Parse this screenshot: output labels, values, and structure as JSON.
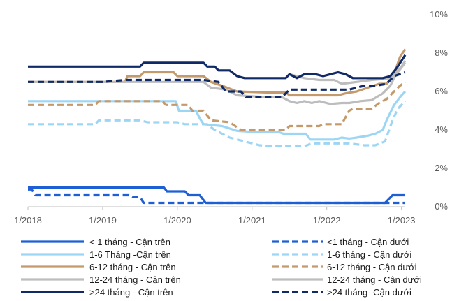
{
  "chart_data": {
    "type": "line",
    "y_axis": {
      "position": "right",
      "min": 0,
      "max": 10,
      "ticks": [
        "0%",
        "2%",
        "4%",
        "6%",
        "8%",
        "10%"
      ],
      "tick_values": [
        0,
        2,
        4,
        6,
        8,
        10
      ]
    },
    "x_axis": {
      "ticks": [
        "1/2018",
        "1/2019",
        "1/2020",
        "1/2021",
        "1/2022",
        "1/2023"
      ],
      "tick_values": [
        0,
        1,
        2,
        3,
        4,
        5
      ]
    },
    "grid": false,
    "legend_position": "bottom",
    "series": [
      {
        "name": "< 1 tháng - Cận trên",
        "color": "#1f5fd6",
        "dash": "solid",
        "points": [
          [
            0,
            1.0
          ],
          [
            1.0,
            1.0
          ],
          [
            1.5,
            1.0
          ],
          [
            1.82,
            1.0
          ],
          [
            1.86,
            0.8
          ],
          [
            2.1,
            0.8
          ],
          [
            2.15,
            0.6
          ],
          [
            2.3,
            0.6
          ],
          [
            2.38,
            0.2
          ],
          [
            4.78,
            0.2
          ],
          [
            4.88,
            0.6
          ],
          [
            5.05,
            0.6
          ]
        ]
      },
      {
        "name": "<1 tháng - Cận dưới",
        "color": "#1f5fd6",
        "dash": "dashed",
        "points": [
          [
            0,
            0.9
          ],
          [
            0.05,
            0.9
          ],
          [
            0.1,
            0.6
          ],
          [
            0.5,
            0.6
          ],
          [
            1.35,
            0.6
          ],
          [
            1.4,
            0.5
          ],
          [
            1.5,
            0.5
          ],
          [
            1.55,
            0.2
          ],
          [
            4.85,
            0.2
          ],
          [
            4.9,
            0.2
          ],
          [
            5.05,
            0.2
          ]
        ]
      },
      {
        "name": "1-6 Tháng -Cận trên",
        "color": "#9dd6f5",
        "dash": "solid",
        "points": [
          [
            0,
            5.5
          ],
          [
            1.0,
            5.5
          ],
          [
            1.6,
            5.5
          ],
          [
            1.98,
            5.5
          ],
          [
            2.02,
            5.0
          ],
          [
            2.25,
            5.0
          ],
          [
            2.3,
            4.6
          ],
          [
            2.35,
            4.3
          ],
          [
            2.6,
            4.2
          ],
          [
            2.8,
            3.95
          ],
          [
            3.0,
            3.9
          ],
          [
            3.35,
            3.9
          ],
          [
            3.42,
            3.8
          ],
          [
            3.72,
            3.8
          ],
          [
            3.78,
            3.5
          ],
          [
            4.1,
            3.5
          ],
          [
            4.2,
            3.6
          ],
          [
            4.3,
            3.55
          ],
          [
            4.4,
            3.6
          ],
          [
            4.55,
            3.7
          ],
          [
            4.65,
            3.8
          ],
          [
            4.75,
            4.0
          ],
          [
            4.8,
            4.5
          ],
          [
            4.9,
            5.3
          ],
          [
            5.0,
            5.8
          ],
          [
            5.05,
            6.0
          ]
        ]
      },
      {
        "name": "1-6 tháng - Cận dưới",
        "color": "#9dd6f5",
        "dash": "dashed",
        "points": [
          [
            0,
            4.3
          ],
          [
            0.5,
            4.3
          ],
          [
            0.9,
            4.3
          ],
          [
            0.95,
            4.5
          ],
          [
            1.5,
            4.5
          ],
          [
            1.6,
            4.4
          ],
          [
            2.0,
            4.4
          ],
          [
            2.1,
            4.3
          ],
          [
            2.4,
            4.3
          ],
          [
            2.5,
            4.0
          ],
          [
            2.7,
            3.6
          ],
          [
            2.9,
            3.4
          ],
          [
            3.1,
            3.2
          ],
          [
            3.3,
            3.15
          ],
          [
            3.7,
            3.15
          ],
          [
            3.8,
            3.3
          ],
          [
            4.3,
            3.3
          ],
          [
            4.5,
            3.2
          ],
          [
            4.65,
            3.2
          ],
          [
            4.78,
            3.4
          ],
          [
            4.88,
            4.5
          ],
          [
            4.95,
            5.1
          ],
          [
            5.05,
            5.5
          ]
        ]
      },
      {
        "name": "6-12 tháng - Cận trên",
        "color": "#c49a6c",
        "dash": "solid",
        "points": [
          [
            0,
            6.5
          ],
          [
            1.0,
            6.5
          ],
          [
            1.3,
            6.5
          ],
          [
            1.33,
            6.8
          ],
          [
            1.5,
            6.8
          ],
          [
            1.55,
            7.0
          ],
          [
            1.95,
            7.0
          ],
          [
            2.0,
            6.8
          ],
          [
            2.35,
            6.8
          ],
          [
            2.45,
            6.5
          ],
          [
            2.6,
            6.3
          ],
          [
            2.8,
            6.0
          ],
          [
            3.2,
            5.95
          ],
          [
            3.45,
            5.95
          ],
          [
            3.5,
            5.8
          ],
          [
            3.9,
            5.8
          ],
          [
            4.0,
            5.8
          ],
          [
            4.15,
            5.8
          ],
          [
            4.25,
            5.9
          ],
          [
            4.4,
            6.0
          ],
          [
            4.55,
            6.2
          ],
          [
            4.7,
            6.4
          ],
          [
            4.8,
            6.4
          ],
          [
            4.9,
            6.9
          ],
          [
            4.98,
            7.8
          ],
          [
            5.05,
            8.2
          ]
        ]
      },
      {
        "name": "6-12 tháng - Cận dưới",
        "color": "#c49a6c",
        "dash": "dashed",
        "points": [
          [
            0,
            5.3
          ],
          [
            0.5,
            5.3
          ],
          [
            0.9,
            5.3
          ],
          [
            0.95,
            5.5
          ],
          [
            1.8,
            5.5
          ],
          [
            1.85,
            5.3
          ],
          [
            2.15,
            5.3
          ],
          [
            2.2,
            5.0
          ],
          [
            2.35,
            5.0
          ],
          [
            2.45,
            4.5
          ],
          [
            2.7,
            4.4
          ],
          [
            2.85,
            4.0
          ],
          [
            3.0,
            4.0
          ],
          [
            3.45,
            4.0
          ],
          [
            3.5,
            4.2
          ],
          [
            3.9,
            4.2
          ],
          [
            3.95,
            4.3
          ],
          [
            4.2,
            4.3
          ],
          [
            4.3,
            5.0
          ],
          [
            4.35,
            5.1
          ],
          [
            4.6,
            5.1
          ],
          [
            4.7,
            5.4
          ],
          [
            4.8,
            5.6
          ],
          [
            4.9,
            6.0
          ],
          [
            4.98,
            6.3
          ],
          [
            5.05,
            6.5
          ]
        ]
      },
      {
        "name": "12-24 tháng - Cận trên",
        "color": "#bdbdbd",
        "dash": "solid",
        "points": [
          [
            0,
            6.5
          ],
          [
            1.0,
            6.5
          ],
          [
            1.6,
            6.5
          ],
          [
            2.0,
            6.5
          ],
          [
            2.35,
            6.5
          ],
          [
            2.45,
            6.2
          ],
          [
            2.65,
            6.1
          ],
          [
            2.8,
            5.8
          ],
          [
            3.2,
            5.7
          ],
          [
            3.4,
            5.7
          ],
          [
            3.5,
            5.5
          ],
          [
            3.6,
            5.4
          ],
          [
            3.7,
            5.5
          ],
          [
            3.8,
            5.4
          ],
          [
            3.9,
            5.5
          ],
          [
            4.05,
            5.35
          ],
          [
            4.2,
            5.4
          ],
          [
            4.3,
            5.4
          ],
          [
            4.45,
            5.5
          ],
          [
            4.6,
            5.55
          ],
          [
            4.75,
            5.9
          ],
          [
            4.85,
            6.3
          ],
          [
            4.95,
            7.1
          ],
          [
            5.0,
            7.3
          ],
          [
            5.05,
            7.6
          ]
        ]
      },
      {
        "name": "12-24 tháng - Cận dưới",
        "color": "#bdbdbd",
        "dash": "solid",
        "points": [
          [
            3.5,
            6.9
          ],
          [
            3.7,
            6.7
          ],
          [
            3.9,
            6.6
          ],
          [
            4.1,
            6.6
          ],
          [
            4.2,
            6.4
          ],
          [
            4.4,
            6.5
          ],
          [
            4.6,
            6.6
          ],
          [
            4.75,
            6.65
          ],
          [
            4.85,
            6.7
          ],
          [
            4.95,
            7.0
          ],
          [
            5.05,
            7.5
          ]
        ]
      },
      {
        "name": ">24 tháng - Cận trên",
        "color": "#0f2a66",
        "dash": "solid",
        "points": [
          [
            0,
            7.3
          ],
          [
            1.0,
            7.3
          ],
          [
            1.5,
            7.3
          ],
          [
            1.55,
            7.5
          ],
          [
            2.0,
            7.5
          ],
          [
            2.35,
            7.5
          ],
          [
            2.4,
            7.3
          ],
          [
            2.5,
            7.3
          ],
          [
            2.55,
            7.1
          ],
          [
            2.7,
            7.1
          ],
          [
            2.8,
            6.8
          ],
          [
            2.9,
            6.7
          ],
          [
            3.2,
            6.7
          ],
          [
            3.45,
            6.7
          ],
          [
            3.5,
            6.9
          ],
          [
            3.6,
            6.7
          ],
          [
            3.7,
            6.9
          ],
          [
            3.85,
            6.9
          ],
          [
            3.95,
            6.8
          ],
          [
            4.05,
            6.9
          ],
          [
            4.15,
            7.0
          ],
          [
            4.25,
            6.9
          ],
          [
            4.35,
            6.7
          ],
          [
            4.55,
            6.7
          ],
          [
            4.75,
            6.7
          ],
          [
            4.85,
            6.8
          ],
          [
            4.95,
            7.3
          ],
          [
            5.05,
            7.9
          ]
        ]
      },
      {
        "name": ">24 tháng- Cận dưới",
        "color": "#0f2a66",
        "dash": "dashed",
        "points": [
          [
            0,
            6.5
          ],
          [
            1.0,
            6.5
          ],
          [
            1.3,
            6.6
          ],
          [
            2.0,
            6.6
          ],
          [
            2.35,
            6.6
          ],
          [
            2.55,
            6.5
          ],
          [
            2.65,
            6.0
          ],
          [
            2.85,
            6.0
          ],
          [
            2.92,
            5.7
          ],
          [
            3.4,
            5.7
          ],
          [
            3.5,
            6.1
          ],
          [
            3.85,
            6.1
          ],
          [
            4.3,
            6.1
          ],
          [
            4.4,
            6.2
          ],
          [
            4.5,
            6.3
          ],
          [
            4.65,
            6.3
          ],
          [
            4.8,
            6.4
          ],
          [
            4.9,
            6.8
          ],
          [
            5.05,
            7.0
          ]
        ]
      }
    ]
  }
}
